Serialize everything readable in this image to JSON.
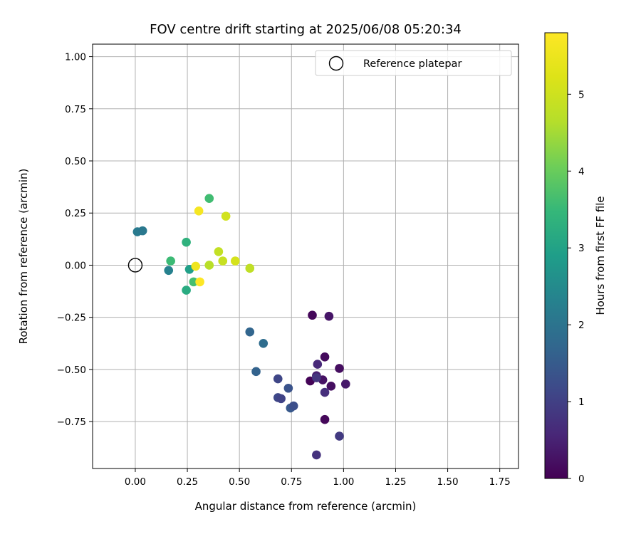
{
  "chart_data": {
    "type": "scatter",
    "title": "FOV centre drift starting at 2025/06/08 05:20:34",
    "xlabel": "Angular distance from reference (arcmin)",
    "ylabel": "Rotation from reference (arcmin)",
    "xlim": [
      -0.205,
      1.84
    ],
    "ylim": [
      -0.975,
      1.06
    ],
    "xticks": [
      0.0,
      0.25,
      0.5,
      0.75,
      1.0,
      1.25,
      1.5,
      1.75
    ],
    "xtick_labels": [
      "0.00",
      "0.25",
      "0.50",
      "0.75",
      "1.00",
      "1.25",
      "1.50",
      "1.75"
    ],
    "yticks": [
      -0.75,
      -0.5,
      -0.25,
      0.0,
      0.25,
      0.5,
      0.75,
      1.0
    ],
    "ytick_labels": [
      "−0.75",
      "−0.50",
      "−0.25",
      "0.00",
      "0.25",
      "0.50",
      "0.75",
      "1.00"
    ],
    "grid": true,
    "legend": {
      "position": "top-right",
      "entries": [
        "Reference platepar"
      ]
    },
    "reference_point": {
      "x": 0.0,
      "y": 0.0,
      "label": "Reference platepar"
    },
    "colorbar": {
      "label": "Hours from first FF file",
      "min": 0,
      "max": 5.8,
      "colormap": "viridis",
      "ticks": [
        0,
        1,
        2,
        3,
        4,
        5
      ],
      "tick_labels": [
        "0",
        "1",
        "2",
        "3",
        "4",
        "5"
      ]
    },
    "points": [
      {
        "x": 0.85,
        "y": -0.24,
        "h": 0.1
      },
      {
        "x": 0.93,
        "y": -0.245,
        "h": 0.3
      },
      {
        "x": 0.91,
        "y": -0.44,
        "h": 0.15
      },
      {
        "x": 0.98,
        "y": -0.495,
        "h": 0.2
      },
      {
        "x": 1.01,
        "y": -0.57,
        "h": 0.35
      },
      {
        "x": 0.91,
        "y": -0.74,
        "h": 0.1
      },
      {
        "x": 0.84,
        "y": -0.555,
        "h": 0.05
      },
      {
        "x": 0.87,
        "y": -0.53,
        "h": 0.45
      },
      {
        "x": 0.875,
        "y": -0.475,
        "h": 0.6
      },
      {
        "x": 0.9,
        "y": -0.55,
        "h": 0.25
      },
      {
        "x": 0.94,
        "y": -0.58,
        "h": 0.2
      },
      {
        "x": 0.91,
        "y": -0.61,
        "h": 0.7
      },
      {
        "x": 0.87,
        "y": -0.54,
        "h": 0.8
      },
      {
        "x": 0.98,
        "y": -0.82,
        "h": 0.9
      },
      {
        "x": 0.87,
        "y": -0.91,
        "h": 0.75
      },
      {
        "x": 0.685,
        "y": -0.545,
        "h": 1.1
      },
      {
        "x": 0.685,
        "y": -0.635,
        "h": 1.15
      },
      {
        "x": 0.7,
        "y": -0.64,
        "h": 1.05
      },
      {
        "x": 0.735,
        "y": -0.59,
        "h": 1.35
      },
      {
        "x": 0.745,
        "y": -0.685,
        "h": 1.45
      },
      {
        "x": 0.76,
        "y": -0.675,
        "h": 1.25
      },
      {
        "x": 0.58,
        "y": -0.51,
        "h": 1.65
      },
      {
        "x": 0.55,
        "y": -0.32,
        "h": 1.7
      },
      {
        "x": 0.615,
        "y": -0.375,
        "h": 1.85
      },
      {
        "x": 0.01,
        "y": 0.16,
        "h": 2.15
      },
      {
        "x": 0.035,
        "y": 0.165,
        "h": 2.1
      },
      {
        "x": 0.16,
        "y": -0.025,
        "h": 2.3
      },
      {
        "x": 0.26,
        "y": -0.02,
        "h": 2.95
      },
      {
        "x": 0.28,
        "y": -0.08,
        "h": 3.65
      },
      {
        "x": 0.245,
        "y": -0.12,
        "h": 3.2
      },
      {
        "x": 0.17,
        "y": 0.02,
        "h": 3.55
      },
      {
        "x": 0.245,
        "y": 0.11,
        "h": 3.35
      },
      {
        "x": 0.355,
        "y": 0.32,
        "h": 3.6
      },
      {
        "x": 0.355,
        "y": 0.0,
        "h": 4.7
      },
      {
        "x": 0.4,
        "y": 0.065,
        "h": 4.85
      },
      {
        "x": 0.42,
        "y": 0.02,
        "h": 4.9
      },
      {
        "x": 0.435,
        "y": 0.235,
        "h": 5.05
      },
      {
        "x": 0.48,
        "y": 0.02,
        "h": 5.1
      },
      {
        "x": 0.55,
        "y": -0.015,
        "h": 4.8
      },
      {
        "x": 0.29,
        "y": -0.005,
        "h": 5.55
      },
      {
        "x": 0.305,
        "y": 0.26,
        "h": 5.65
      },
      {
        "x": 0.31,
        "y": -0.08,
        "h": 5.8
      }
    ]
  }
}
